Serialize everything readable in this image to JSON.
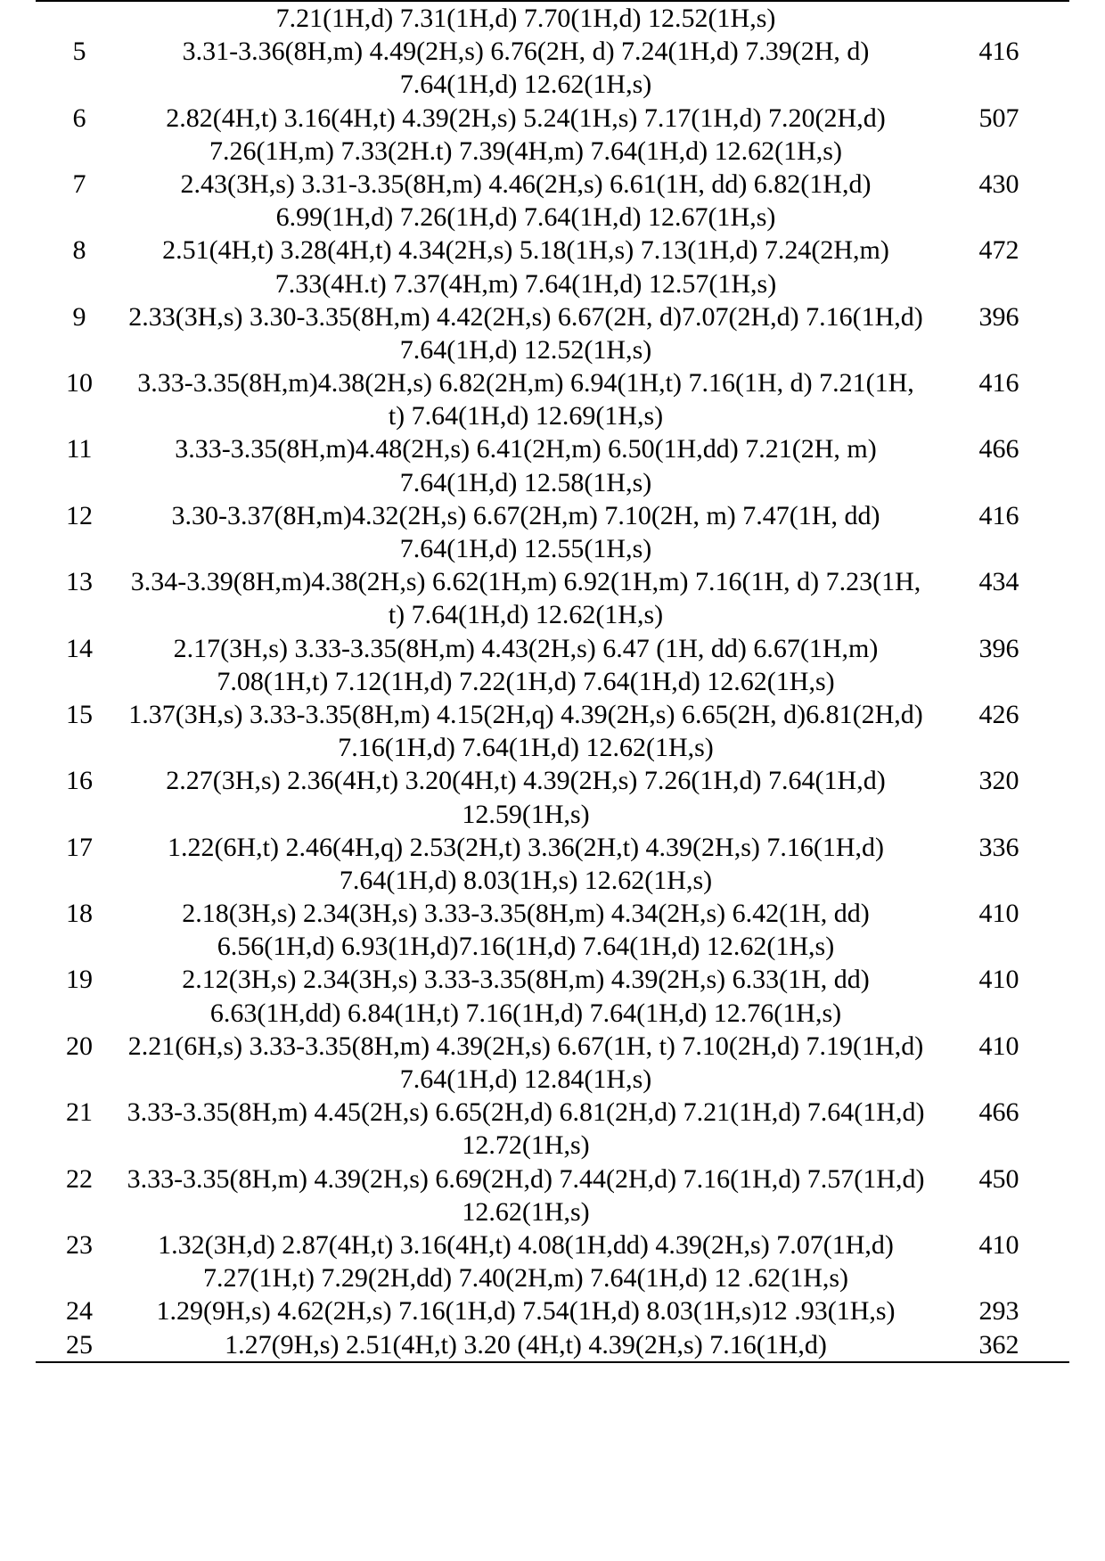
{
  "table": {
    "font_family": "Times New Roman",
    "font_size_pt": 22,
    "text_color": "#000000",
    "background_color": "#ffffff",
    "border_color": "#000000",
    "orphan_row": "7.21(1H,d) 7.31(1H,d) 7.70(1H,d) 12.52(1H,s)",
    "rows": [
      {
        "id": "5",
        "nmr": "3.31-3.36(8H,m) 4.49(2H,s) 6.76(2H, d) 7.24(1H,d) 7.39(2H, d) 7.64(1H,d) 12.62(1H,s)",
        "mass": "416"
      },
      {
        "id": "6",
        "nmr": "2.82(4H,t) 3.16(4H,t) 4.39(2H,s) 5.24(1H,s) 7.17(1H,d) 7.20(2H,d) 7.26(1H,m) 7.33(2H.t) 7.39(4H,m) 7.64(1H,d) 12.62(1H,s)",
        "mass": "507"
      },
      {
        "id": "7",
        "nmr": "2.43(3H,s) 3.31-3.35(8H,m) 4.46(2H,s) 6.61(1H, dd) 6.82(1H,d) 6.99(1H,d) 7.26(1H,d) 7.64(1H,d) 12.67(1H,s)",
        "mass": "430"
      },
      {
        "id": "8",
        "nmr": "2.51(4H,t) 3.28(4H,t) 4.34(2H,s) 5.18(1H,s) 7.13(1H,d) 7.24(2H,m) 7.33(4H.t) 7.37(4H,m) 7.64(1H,d) 12.57(1H,s)",
        "mass": "472"
      },
      {
        "id": "9",
        "nmr": "2.33(3H,s) 3.30-3.35(8H,m) 4.42(2H,s) 6.67(2H, d)7.07(2H,d) 7.16(1H,d) 7.64(1H,d) 12.52(1H,s)",
        "mass": "396"
      },
      {
        "id": "10",
        "nmr": "3.33-3.35(8H,m)4.38(2H,s) 6.82(2H,m) 6.94(1H,t) 7.16(1H, d) 7.21(1H, t) 7.64(1H,d) 12.69(1H,s)",
        "mass": "416"
      },
      {
        "id": "11",
        "nmr": "3.33-3.35(8H,m)4.48(2H,s) 6.41(2H,m) 6.50(1H,dd) 7.21(2H, m) 7.64(1H,d) 12.58(1H,s)",
        "mass": "466"
      },
      {
        "id": "12",
        "nmr": "3.30-3.37(8H,m)4.32(2H,s) 6.67(2H,m) 7.10(2H, m) 7.47(1H, dd) 7.64(1H,d) 12.55(1H,s)",
        "mass": "416"
      },
      {
        "id": "13",
        "nmr": "3.34-3.39(8H,m)4.38(2H,s) 6.62(1H,m) 6.92(1H,m) 7.16(1H, d) 7.23(1H, t) 7.64(1H,d) 12.62(1H,s)",
        "mass": "434"
      },
      {
        "id": "14",
        "nmr": "2.17(3H,s) 3.33-3.35(8H,m) 4.43(2H,s) 6.47 (1H, dd) 6.67(1H,m) 7.08(1H,t) 7.12(1H,d) 7.22(1H,d) 7.64(1H,d) 12.62(1H,s)",
        "mass": "396"
      },
      {
        "id": "15",
        "nmr": "1.37(3H,s) 3.33-3.35(8H,m) 4.15(2H,q) 4.39(2H,s) 6.65(2H, d)6.81(2H,d) 7.16(1H,d) 7.64(1H,d) 12.62(1H,s)",
        "mass": "426"
      },
      {
        "id": "16",
        "nmr": "2.27(3H,s) 2.36(4H,t) 3.20(4H,t) 4.39(2H,s) 7.26(1H,d) 7.64(1H,d) 12.59(1H,s)",
        "mass": "320"
      },
      {
        "id": "17",
        "nmr": "1.22(6H,t) 2.46(4H,q) 2.53(2H,t) 3.36(2H,t) 4.39(2H,s) 7.16(1H,d) 7.64(1H,d) 8.03(1H,s) 12.62(1H,s)",
        "mass": "336"
      },
      {
        "id": "18",
        "nmr": "2.18(3H,s) 2.34(3H,s) 3.33-3.35(8H,m) 4.34(2H,s) 6.42(1H, dd) 6.56(1H,d) 6.93(1H,d)7.16(1H,d) 7.64(1H,d) 12.62(1H,s)",
        "mass": "410"
      },
      {
        "id": "19",
        "nmr": "2.12(3H,s) 2.34(3H,s) 3.33-3.35(8H,m) 4.39(2H,s) 6.33(1H, dd) 6.63(1H,dd) 6.84(1H,t) 7.16(1H,d) 7.64(1H,d) 12.76(1H,s)",
        "mass": "410"
      },
      {
        "id": "20",
        "nmr": "2.21(6H,s) 3.33-3.35(8H,m) 4.39(2H,s) 6.67(1H, t) 7.10(2H,d) 7.19(1H,d) 7.64(1H,d) 12.84(1H,s)",
        "mass": "410"
      },
      {
        "id": "21",
        "nmr": "3.33-3.35(8H,m) 4.45(2H,s) 6.65(2H,d) 6.81(2H,d) 7.21(1H,d) 7.64(1H,d) 12.72(1H,s)",
        "mass": "466"
      },
      {
        "id": "22",
        "nmr": "3.33-3.35(8H,m) 4.39(2H,s) 6.69(2H,d) 7.44(2H,d) 7.16(1H,d) 7.57(1H,d) 12.62(1H,s)",
        "mass": "450"
      },
      {
        "id": "23",
        "nmr": "1.32(3H,d) 2.87(4H,t) 3.16(4H,t) 4.08(1H,dd) 4.39(2H,s) 7.07(1H,d) 7.27(1H,t) 7.29(2H,dd) 7.40(2H,m) 7.64(1H,d) 12 .62(1H,s)",
        "mass": "410"
      },
      {
        "id": "24",
        "nmr": "1.29(9H,s) 4.62(2H,s) 7.16(1H,d) 7.54(1H,d) 8.03(1H,s)12 .93(1H,s)",
        "mass": "293"
      },
      {
        "id": "25",
        "nmr": "1.27(9H,s) 2.51(4H,t) 3.20 (4H,t) 4.39(2H,s) 7.16(1H,d)",
        "mass": "362"
      }
    ]
  }
}
